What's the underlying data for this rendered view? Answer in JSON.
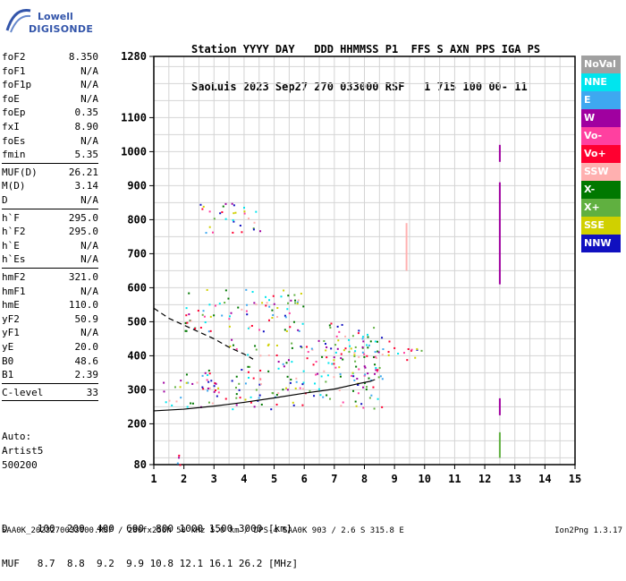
{
  "logo": {
    "line1": "Lowell",
    "line2": "DIGISONDE"
  },
  "header": {
    "line1": "Station YYYY DAY   DDD HHMMSS P1  FFS S AXN PPS IGA PS",
    "line2": "SaoLuis 2023 Sep27 270 033000 RSF   1 715 100 00- 11"
  },
  "params": [
    {
      "k": "foF2",
      "v": "8.350"
    },
    {
      "k": "foF1",
      "v": "N/A"
    },
    {
      "k": "foF1p",
      "v": "N/A"
    },
    {
      "k": "foE",
      "v": "N/A"
    },
    {
      "k": "foEp",
      "v": "0.35"
    },
    {
      "k": "fxI",
      "v": "8.90"
    },
    {
      "k": "foEs",
      "v": "N/A"
    },
    {
      "k": "fmin",
      "v": "5.35"
    },
    {
      "k": "MUF(D)",
      "v": "26.21"
    },
    {
      "k": "M(D)",
      "v": "3.14"
    },
    {
      "k": "D",
      "v": "N/A"
    },
    {
      "k": "h`F",
      "v": "295.0"
    },
    {
      "k": "h`F2",
      "v": "295.0"
    },
    {
      "k": "h`E",
      "v": "N/A"
    },
    {
      "k": "h`Es",
      "v": "N/A"
    },
    {
      "k": "hmF2",
      "v": "321.0"
    },
    {
      "k": "hmF1",
      "v": "N/A"
    },
    {
      "k": "hmE",
      "v": "110.0"
    },
    {
      "k": "yF2",
      "v": "50.9"
    },
    {
      "k": "yF1",
      "v": "N/A"
    },
    {
      "k": "yE",
      "v": "20.0"
    },
    {
      "k": "B0",
      "v": "48.6"
    },
    {
      "k": "B1",
      "v": "2.39"
    },
    {
      "k": "C-level",
      "v": "33"
    }
  ],
  "auto": {
    "line1": "Auto:",
    "line2": "Artist5",
    "line3": "500200"
  },
  "legend": [
    {
      "label": "NoVal",
      "color": "#a0a0a0"
    },
    {
      "label": "NNE",
      "color": "#00e5ee"
    },
    {
      "label": "E",
      "color": "#3ea8f0"
    },
    {
      "label": "W",
      "color": "#a000a0"
    },
    {
      "label": "Vo-",
      "color": "#ff40a0"
    },
    {
      "label": "Vo+",
      "color": "#ff0030"
    },
    {
      "label": "SSW",
      "color": "#ffb0b0"
    },
    {
      "label": "X-",
      "color": "#007800"
    },
    {
      "label": "X+",
      "color": "#60b040"
    },
    {
      "label": "SSE",
      "color": "#d0d000"
    },
    {
      "label": "NNW",
      "color": "#1010c0"
    }
  ],
  "dmuf": {
    "line1": "D     100  200  400  600  800 1000 1500 3000 [km]",
    "line2": "MUF   8.7  8.8  9.2  9.9 10.8 12.1 16.1 26.2 [MHz]"
  },
  "footer": "SAA0K_2023270033000.RSF / 280fx256h 50 kHz 5.0 km / DPS-4 SAA0K 903 / 2.6 S 315.8 E",
  "version": "Ion2Png 1.3.17",
  "chart_data": {
    "type": "scatter",
    "title": "",
    "xlabel": "",
    "ylabel": "",
    "xlim": [
      1,
      15
    ],
    "ylim": [
      80,
      1280
    ],
    "x_ticks": [
      1,
      2,
      3,
      4,
      5,
      6,
      7,
      8,
      9,
      10,
      11,
      12,
      13,
      14,
      15
    ],
    "y_ticks": [
      80,
      200,
      300,
      400,
      500,
      600,
      700,
      800,
      900,
      1000,
      1100,
      1280
    ],
    "grid": true,
    "series": [
      {
        "name": "O-trace (fitted)",
        "color": "#000000",
        "x": [
          1.0,
          2.0,
          3.0,
          4.0,
          5.0,
          6.0,
          7.0,
          7.8,
          8.2,
          8.35
        ],
        "y": [
          238,
          243,
          252,
          263,
          276,
          290,
          302,
          318,
          325,
          330
        ]
      },
      {
        "name": "Profile",
        "color": "#000000",
        "dashed": true,
        "x": [
          1.0,
          1.5,
          2.0,
          2.5,
          3.0,
          3.5,
          4.0,
          4.3
        ],
        "y": [
          540,
          510,
          490,
          470,
          450,
          425,
          405,
          390
        ]
      }
    ],
    "scatter_clusters": [
      {
        "x": [
          1.3,
          8.6
        ],
        "y": [
          245,
          330
        ]
      },
      {
        "x": [
          3.5,
          8.6
        ],
        "y": [
          330,
          450
        ]
      },
      {
        "x": [
          6.8,
          8.6
        ],
        "y": [
          330,
          500
        ]
      },
      {
        "x": [
          2.0,
          6.0
        ],
        "y": [
          470,
          600
        ]
      },
      {
        "x": [
          2.5,
          4.6
        ],
        "y": [
          760,
          850
        ]
      },
      {
        "x": [
          8.6,
          10.0
        ],
        "y": [
          390,
          450
        ]
      },
      {
        "x": [
          1.5,
          2.2
        ],
        "y": [
          80,
          110
        ]
      },
      {
        "x": [
          2.0,
          3.0
        ],
        "y": [
          280,
          360
        ]
      }
    ],
    "vertical_traces": [
      {
        "x": 9.4,
        "y": [
          650,
          790
        ],
        "color": "#ffb0b0"
      },
      {
        "x": 12.5,
        "y": [
          610,
          910
        ],
        "color": "#a000a0"
      },
      {
        "x": 12.5,
        "y": [
          970,
          1020
        ],
        "color": "#a000a0"
      },
      {
        "x": 12.5,
        "y": [
          225,
          275
        ],
        "color": "#a000a0"
      },
      {
        "x": 12.5,
        "y": [
          100,
          175
        ],
        "color": "#60b040"
      }
    ]
  }
}
